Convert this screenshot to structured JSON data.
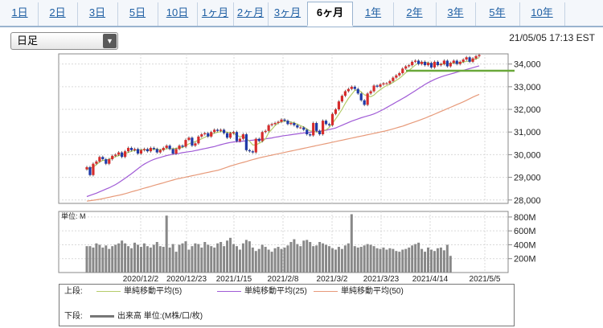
{
  "tabs": [
    {
      "label": "1日",
      "w": 45
    },
    {
      "label": "2日",
      "w": 49
    },
    {
      "label": "3日",
      "w": 50
    },
    {
      "label": "5日",
      "w": 50
    },
    {
      "label": "10日",
      "w": 49
    },
    {
      "label": "1ヶ月",
      "w": 45
    },
    {
      "label": "2ヶ月",
      "w": 43
    },
    {
      "label": "3ヶ月",
      "w": 49
    },
    {
      "label": "6ヶ月",
      "w": 57,
      "active": true
    },
    {
      "label": "1年",
      "w": 50
    },
    {
      "label": "2年",
      "w": 53
    },
    {
      "label": "3年",
      "w": 49
    },
    {
      "label": "5年",
      "w": 55
    },
    {
      "label": "10年",
      "w": 56
    }
  ],
  "period_select": {
    "value": "日足"
  },
  "timestamp": "21/05/05 17:13 EST",
  "price_axis": [
    "34,000",
    "33,000",
    "32,000",
    "31,000",
    "30,000",
    "29,000",
    "28,000"
  ],
  "volume_axis": [
    "800M",
    "600M",
    "400M",
    "200M"
  ],
  "volume_unit": "単位: M",
  "x_labels": [
    "2020/12/2",
    "2020/12/23",
    "2021/1/15",
    "2021/2/8",
    "2021/3/2",
    "2021/3/23",
    "2021/4/14",
    "2021/5/5"
  ],
  "legend": {
    "upper_label": "上段:",
    "lower_label": "下段:",
    "ma5": "単純移動平均(5)",
    "ma25": "単純移動平均(25)",
    "ma50": "単純移動平均(50)",
    "volume": "出来高 単位:(M株/口/枚)"
  },
  "colors": {
    "ma5": "#b5cc6a",
    "ma25": "#a05bd6",
    "ma50": "#e79a7a",
    "up": "#d62c2c",
    "down": "#1f3aa8",
    "volume": "#888888",
    "support_line": "#6aa83a"
  },
  "chart_data": {
    "type": "candlestick",
    "ylim": [
      28000,
      34400
    ],
    "closes": [
      29450,
      29100,
      29600,
      29700,
      29900,
      29800,
      29600,
      29800,
      29950,
      30000,
      30100,
      29900,
      30150,
      30300,
      30200,
      30250,
      30050,
      30200,
      30250,
      30150,
      30300,
      30250,
      30100,
      30200,
      30300,
      30400,
      30250,
      30050,
      30250,
      30400,
      30350,
      30650,
      30750,
      30400,
      30500,
      30800,
      30900,
      30950,
      30800,
      31000,
      31100,
      31050,
      31100,
      30950,
      30750,
      30950,
      31000,
      30600,
      30700,
      30900,
      30200,
      30150,
      30100,
      30700,
      30600,
      31000,
      31050,
      31300,
      31350,
      31400,
      31450,
      31550,
      31500,
      31350,
      31400,
      31300,
      31200,
      31200,
      31100,
      30900,
      30850,
      31400,
      31050,
      30900,
      31500,
      31350,
      31300,
      31800,
      32000,
      32350,
      32600,
      32800,
      32900,
      33000,
      32900,
      32700,
      32400,
      32200,
      32700,
      32800,
      33050,
      33000,
      33100,
      33150,
      33150,
      33250,
      33400,
      33500,
      33600,
      33800,
      33900,
      33950,
      34100,
      34150,
      34000,
      34100,
      33950,
      34050,
      33850,
      34100,
      33950,
      34000,
      34150,
      33900,
      34050,
      34150,
      34000,
      34100,
      34200,
      34300,
      34100,
      34250,
      34350,
      34400
    ],
    "ma5": [
      29350,
      29400,
      29450,
      29560,
      29680,
      29750,
      29750,
      29800,
      29870,
      29910,
      29960,
      29990,
      30050,
      30100,
      30150,
      30190,
      30210,
      30220,
      30220,
      30210,
      30200,
      30240,
      30250,
      30210,
      30220,
      30270,
      30270,
      30260,
      30280,
      30300,
      30320,
      30400,
      30480,
      30530,
      30580,
      30640,
      30700,
      30770,
      30830,
      30890,
      30950,
      30990,
      31020,
      31020,
      30990,
      30980,
      30950,
      30850,
      30800,
      30820,
      30700,
      30600,
      30430,
      30430,
      30500,
      30580,
      30700,
      30960,
      31120,
      31280,
      31400,
      31460,
      31490,
      31460,
      31440,
      31400,
      31350,
      31280,
      31220,
      31130,
      31050,
      31040,
      31000,
      30980,
      31070,
      31100,
      31200,
      31380,
      31580,
      31780,
      32000,
      32260,
      32480,
      32660,
      32840,
      32860,
      32780,
      32640,
      32600,
      32560,
      32630,
      32760,
      32870,
      32970,
      33050,
      33110,
      33190,
      33280,
      33370,
      33490,
      33620,
      33720,
      33840,
      33960,
      34050,
      34080,
      34060,
      34060,
      34010,
      34000,
      34000,
      33990,
      34010,
      34020,
      34030,
      34050,
      34060,
      34070,
      34080,
      34120,
      34130,
      34180,
      34230,
      34280
    ],
    "ma25": [
      28150,
      28200,
      28250,
      28300,
      28360,
      28420,
      28480,
      28540,
      28610,
      28680,
      28770,
      28860,
      28960,
      29060,
      29160,
      29270,
      29380,
      29490,
      29580,
      29660,
      29730,
      29790,
      29840,
      29880,
      29920,
      29960,
      29990,
      30020,
      30040,
      30060,
      30090,
      30110,
      30130,
      30150,
      30180,
      30210,
      30240,
      30270,
      30300,
      30330,
      30360,
      30400,
      30440,
      30480,
      30510,
      30540,
      30560,
      30570,
      30580,
      30600,
      30610,
      30630,
      30640,
      30660,
      30670,
      30680,
      30700,
      30720,
      30740,
      30770,
      30790,
      30820,
      30840,
      30860,
      30880,
      30900,
      30920,
      30940,
      30960,
      30970,
      30990,
      31000,
      31020,
      31040,
      31060,
      31080,
      31110,
      31140,
      31180,
      31240,
      31300,
      31360,
      31420,
      31480,
      31530,
      31580,
      31630,
      31670,
      31710,
      31750,
      31800,
      31860,
      31930,
      32000,
      32080,
      32160,
      32240,
      32320,
      32400,
      32480,
      32560,
      32650,
      32740,
      32830,
      32920,
      33010,
      33100,
      33180,
      33250,
      33320,
      33380,
      33430,
      33480,
      33520,
      33560,
      33600,
      33640,
      33680,
      33720,
      33760,
      33800,
      33840,
      33880,
      33920
    ],
    "ma50": [
      27950,
      27970,
      27990,
      28010,
      28030,
      28060,
      28090,
      28120,
      28150,
      28180,
      28210,
      28240,
      28280,
      28320,
      28360,
      28400,
      28440,
      28480,
      28520,
      28560,
      28600,
      28640,
      28680,
      28720,
      28760,
      28800,
      28840,
      28880,
      28920,
      28950,
      28980,
      29010,
      29040,
      29070,
      29100,
      29130,
      29160,
      29190,
      29220,
      29250,
      29280,
      29310,
      29350,
      29400,
      29450,
      29500,
      29540,
      29580,
      29620,
      29660,
      29700,
      29740,
      29780,
      29820,
      29860,
      29890,
      29920,
      29950,
      29980,
      30010,
      30040,
      30070,
      30100,
      30130,
      30160,
      30190,
      30220,
      30250,
      30280,
      30310,
      30340,
      30370,
      30400,
      30430,
      30460,
      30490,
      30520,
      30550,
      30580,
      30610,
      30640,
      30670,
      30700,
      30730,
      30760,
      30790,
      30820,
      30850,
      30880,
      30910,
      30940,
      30970,
      31000,
      31030,
      31060,
      31100,
      31140,
      31180,
      31220,
      31260,
      31310,
      31360,
      31410,
      31460,
      31510,
      31560,
      31610,
      31670,
      31730,
      31790,
      31850,
      31910,
      31970,
      32030,
      32090,
      32150,
      32210,
      32270,
      32330,
      32400,
      32470,
      32540,
      32600,
      32660
    ],
    "volume": [
      380,
      380,
      360,
      420,
      400,
      360,
      390,
      340,
      380,
      400,
      420,
      460,
      420,
      380,
      350,
      430,
      400,
      370,
      420,
      380,
      360,
      400,
      440,
      380,
      370,
      820,
      360,
      410,
      300,
      400,
      420,
      450,
      330,
      380,
      420,
      410,
      360,
      440,
      400,
      380,
      360,
      420,
      440,
      380,
      460,
      500,
      410,
      380,
      330,
      420,
      470,
      450,
      360,
      310,
      340,
      400,
      370,
      330,
      300,
      350,
      370,
      340,
      360,
      390,
      440,
      480,
      410,
      380,
      460,
      470,
      440,
      380,
      390,
      440,
      420,
      400,
      380,
      350,
      330,
      370,
      340,
      390,
      420,
      840,
      380,
      360,
      370,
      390,
      410,
      400,
      380,
      350,
      340,
      360,
      330,
      350,
      340,
      310,
      300,
      330,
      340,
      360,
      390,
      410,
      430,
      340,
      300,
      360,
      330,
      310,
      350,
      360,
      320,
      400,
      240,
      0,
      0,
      0,
      0,
      0,
      0,
      0,
      0,
      0
    ]
  }
}
